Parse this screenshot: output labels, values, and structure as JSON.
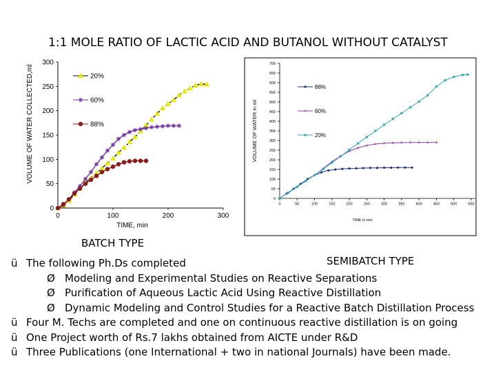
{
  "title": "1:1 MOLE RATIO OF LACTIC ACID AND BUTANOL WITHOUT CATALYST",
  "captions": {
    "left": "BATCH TYPE",
    "right": "SEMIBATCH TYPE"
  },
  "symbols": {
    "check": "ü",
    "arrow": "Ø"
  },
  "bullets": {
    "b1": "The following Ph.Ds completed",
    "s1": "Modeling and Experimental Studies on Reactive Separations",
    "s2": "Purification of Aqueous Lactic Acid Using Reactive Distillation",
    "s3": "Dynamic Modeling and Control Studies for a Reactive Batch Distillation Process",
    "b2": "Four M. Techs are completed and one on continuous reactive distillation is on going",
    "b3": "One Project worth of Rs.7 lakhs obtained from AICTE under R&D",
    "b4": "Three Publications (one International + two in national Journals) have been made."
  },
  "chart_data": [
    {
      "type": "line",
      "title": "BATCH TYPE",
      "xlabel": "TIME, min",
      "ylabel": "VOLUME OF WATER COLLECTED,ml",
      "xlim": [
        0,
        300
      ],
      "ylim": [
        0,
        300
      ],
      "xticks": [
        0,
        100,
        200,
        300
      ],
      "yticks": [
        0,
        50,
        100,
        150,
        200,
        250,
        300
      ],
      "grid": false,
      "legend": "inside-left",
      "series": [
        {
          "name": "20%",
          "color": "#e8e800",
          "line": "#000000",
          "marker": "triangle",
          "x": [
            0,
            10,
            20,
            30,
            40,
            50,
            60,
            70,
            80,
            90,
            100,
            110,
            120,
            130,
            140,
            150,
            160,
            170,
            180,
            190,
            200,
            210,
            220,
            230,
            240,
            250,
            260,
            270
          ],
          "y": [
            0,
            5,
            15,
            28,
            40,
            52,
            62,
            72,
            82,
            92,
            102,
            114,
            124,
            136,
            146,
            158,
            170,
            182,
            194,
            205,
            214,
            222,
            232,
            240,
            246,
            252,
            255,
            254
          ]
        },
        {
          "name": "60%",
          "color": "#7030a0",
          "line": "#7030a0",
          "marker": "asterisk",
          "x": [
            0,
            10,
            20,
            30,
            40,
            50,
            60,
            70,
            80,
            90,
            100,
            110,
            120,
            130,
            140,
            150,
            160,
            170,
            180,
            190,
            200,
            210,
            220
          ],
          "y": [
            0,
            6,
            18,
            32,
            45,
            60,
            74,
            90,
            104,
            118,
            130,
            142,
            150,
            156,
            160,
            162,
            164,
            166,
            167,
            168,
            169,
            169,
            169
          ]
        },
        {
          "name": "88%",
          "color": "#8b1a1a",
          "line": "#8b1a1a",
          "marker": "circle",
          "x": [
            0,
            10,
            20,
            30,
            40,
            50,
            60,
            70,
            80,
            90,
            100,
            110,
            120,
            130,
            140,
            150,
            160
          ],
          "y": [
            0,
            8,
            18,
            30,
            40,
            50,
            58,
            66,
            74,
            80,
            85,
            90,
            94,
            96,
            97,
            97,
            97
          ]
        }
      ]
    },
    {
      "type": "line",
      "title": "SEMIBATCH TYPE",
      "xlabel": "TIME in min",
      "ylabel": "VOLUME OF WATER in ml",
      "xlim": [
        0,
        550
      ],
      "ylim": [
        0,
        700
      ],
      "xticks": [
        0,
        50,
        100,
        150,
        200,
        250,
        300,
        350,
        400,
        450,
        500,
        550
      ],
      "yticks": [
        0,
        50,
        100,
        150,
        200,
        250,
        300,
        350,
        400,
        450,
        500,
        550,
        600,
        650,
        700
      ],
      "grid": false,
      "legend": "inside-right",
      "series": [
        {
          "name": "88%",
          "color": "#1f2f7a",
          "marker": "circle",
          "x": [
            0,
            20,
            40,
            60,
            80,
            100,
            120,
            140,
            160,
            180,
            200,
            220,
            240,
            260,
            280,
            300,
            320,
            340,
            360,
            380
          ],
          "y": [
            0,
            25,
            50,
            75,
            100,
            120,
            135,
            145,
            150,
            153,
            155,
            156,
            157,
            158,
            158,
            159,
            159,
            160,
            160,
            160
          ]
        },
        {
          "name": "60%",
          "color": "#8b3aa0",
          "marker": "plus",
          "x": [
            0,
            25,
            50,
            75,
            100,
            125,
            150,
            175,
            200,
            225,
            250,
            275,
            300,
            325,
            350,
            375,
            400,
            425,
            450
          ],
          "y": [
            0,
            30,
            60,
            90,
            120,
            155,
            190,
            220,
            245,
            262,
            274,
            282,
            286,
            288,
            289,
            290,
            290,
            290,
            290
          ]
        },
        {
          "name": "20%",
          "color": "#33aabb",
          "marker": "square",
          "x": [
            0,
            25,
            50,
            75,
            100,
            125,
            150,
            175,
            200,
            225,
            250,
            275,
            300,
            325,
            350,
            375,
            400,
            425,
            450,
            475,
            500,
            525,
            540
          ],
          "y": [
            0,
            30,
            60,
            90,
            120,
            152,
            185,
            218,
            252,
            285,
            318,
            350,
            382,
            412,
            442,
            472,
            502,
            535,
            580,
            612,
            630,
            640,
            642
          ]
        }
      ]
    }
  ]
}
